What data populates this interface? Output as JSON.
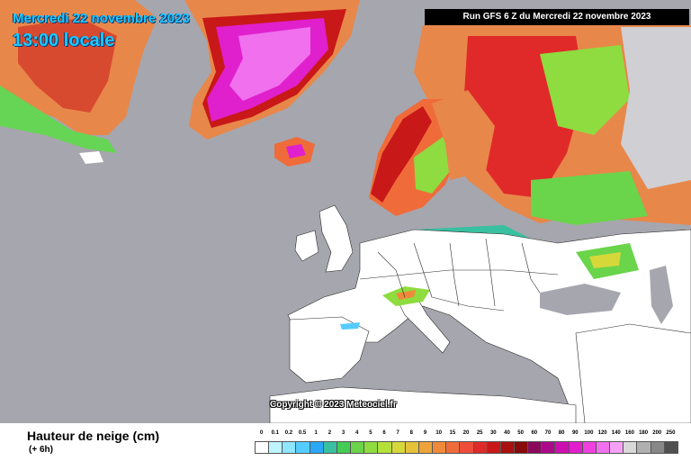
{
  "header": {
    "date": "Mercredi 22 novembre 2023",
    "time": "13:00 locale",
    "run": "Run GFS 6 Z du Mercredi 22 novembre 2023"
  },
  "map": {
    "copyright": "Copyright © 2023 Meteociel.fr",
    "colors": {
      "sea": "#a6a6ae",
      "land_no_snow": "#ffffff",
      "borders": "#2a2a2a"
    }
  },
  "footer": {
    "variable": "Hauteur de neige (cm)",
    "step": "(+ 6h)"
  },
  "legend": {
    "labels": [
      "0",
      "0.1",
      "0.2",
      "0.5",
      "1",
      "2",
      "3",
      "4",
      "5",
      "6",
      "7",
      "8",
      "9",
      "10",
      "15",
      "20",
      "25",
      "30",
      "40",
      "50",
      "60",
      "70",
      "80",
      "90",
      "100",
      "120",
      "140",
      "160",
      "180",
      "200",
      "250"
    ],
    "colors": [
      "#ffffff",
      "#bff5ff",
      "#8ee6ff",
      "#55ccff",
      "#2aa8f5",
      "#38c0a0",
      "#44cc55",
      "#6ad44a",
      "#8edc40",
      "#b4e03a",
      "#d6d83a",
      "#e6c23a",
      "#eca43a",
      "#ef8a3a",
      "#ef6c3a",
      "#ef4c3a",
      "#e02a2a",
      "#c81818",
      "#a81010",
      "#880a0a",
      "#8a0a5a",
      "#aa0a8a",
      "#cc10b0",
      "#e020cc",
      "#f040e0",
      "#f070ee",
      "#f4a0f4",
      "#d8d8d8",
      "#b0b0b0",
      "#888888",
      "#505050"
    ]
  }
}
